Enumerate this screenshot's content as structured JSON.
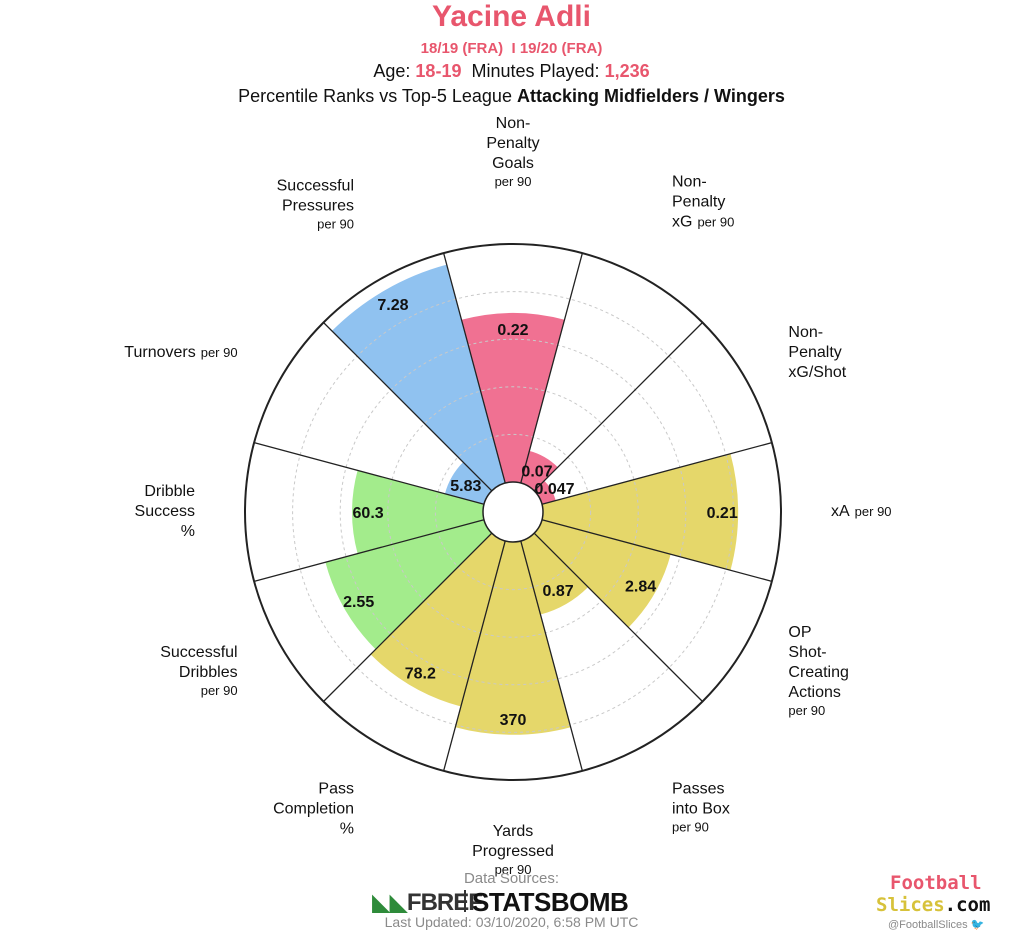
{
  "header": {
    "player_name": "Yacine Adli",
    "seasons": "18/19 (FRA)  I 19/20 (FRA)",
    "age_label": "Age:",
    "age_value": "18-19",
    "minutes_label": "Minutes Played:",
    "minutes_value": "1,236",
    "percentile_prefix": "Percentile Ranks vs Top-5 League",
    "percentile_group": "Attacking Midfielders / Wingers"
  },
  "chart_data": {
    "type": "polar-bar",
    "rlim": [
      0,
      100
    ],
    "grid": true,
    "segments": [
      {
        "name": [
          "Non-",
          "Penalty",
          "Goals"
        ],
        "unit": "per 90",
        "value_label": "0.22",
        "percentile": 71,
        "color": "#f07192"
      },
      {
        "name": [
          "Non-",
          "Penalty",
          "xG"
        ],
        "unit": "per 90",
        "value_label": "0.07",
        "percentile": 14,
        "color": "#f07192"
      },
      {
        "name": [
          "Non-",
          "Penalty",
          "xG/Shot"
        ],
        "unit": "",
        "value_label": "0.047",
        "percentile": 6,
        "color": "#f07192"
      },
      {
        "name": [
          "xA"
        ],
        "unit": "per 90",
        "value_label": "0.21",
        "percentile": 82,
        "color": "#e5d76a"
      },
      {
        "name": [
          "OP",
          "Shot-",
          "Creating",
          "Actions"
        ],
        "unit": "per 90",
        "value_label": "2.84",
        "percentile": 56,
        "color": "#e5d76a"
      },
      {
        "name": [
          "Passes",
          "into Box"
        ],
        "unit": "per 90",
        "value_label": "0.87",
        "percentile": 32,
        "color": "#e5d76a"
      },
      {
        "name": [
          "Yards",
          "Progressed"
        ],
        "unit": "per 90",
        "value_label": "370",
        "percentile": 81,
        "color": "#e5d76a"
      },
      {
        "name": [
          "Pass",
          "Completion",
          "%"
        ],
        "unit": "",
        "value_label": "78.2",
        "percentile": 72,
        "color": "#e5d76a"
      },
      {
        "name": [
          "Successful",
          "Dribbles"
        ],
        "unit": "per 90",
        "value_label": "2.55",
        "percentile": 69,
        "color": "#a3ec8c"
      },
      {
        "name": [
          "Dribble",
          "Success",
          "%"
        ],
        "unit": "",
        "value_label": "60.3",
        "percentile": 55,
        "color": "#a3ec8c"
      },
      {
        "name": [
          "Turnovers"
        ],
        "unit": "per 90",
        "value_label": "5.83",
        "percentile": 17,
        "color": "#90c2f0"
      },
      {
        "name": [
          "Successful",
          "Pressures"
        ],
        "unit": "per 90",
        "value_label": "7.28",
        "percentile": 95,
        "color": "#90c2f0"
      }
    ]
  },
  "footer": {
    "sources_label": "Data Sources:",
    "fbref_logo": "FBREF",
    "statsbomb_logo": "STATSBOMB",
    "last_updated": "Last Updated: 03/10/2020, 6:58 PM UTC",
    "fs_line1": "Football",
    "fs_line2a": "Slices",
    "fs_line2b": ".com",
    "fs_handle": "@FootballSlices"
  }
}
